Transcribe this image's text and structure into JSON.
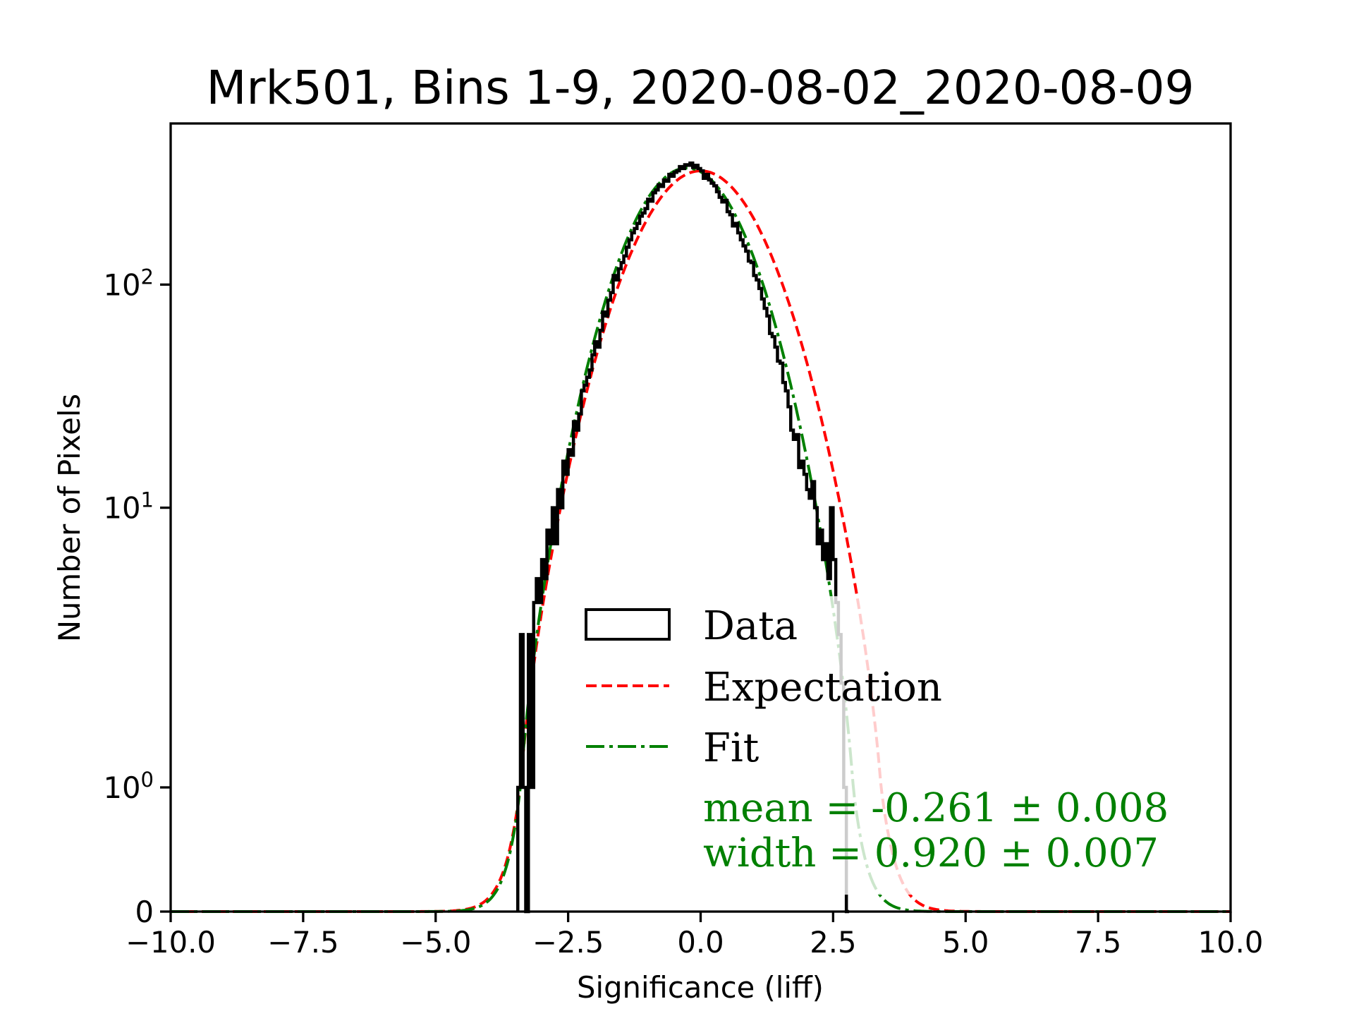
{
  "chart_data": {
    "type": "bar",
    "histtype": "step",
    "title": "Mrk501, Bins 1-9, 2020-08-02_2020-08-09",
    "xlabel": "Significance (liff)",
    "ylabel": "Number of Pixels",
    "xlim": [
      -10,
      10
    ],
    "ylim": [
      0,
      540
    ],
    "yscale": "symlog-like",
    "grid": false,
    "legend_placement": "lower-center-right",
    "x_ticks": [
      {
        "value": -10,
        "label": "−10.0"
      },
      {
        "value": -7.5,
        "label": "−7.5"
      },
      {
        "value": -5,
        "label": "−5.0"
      },
      {
        "value": -2.5,
        "label": "−2.5"
      },
      {
        "value": 0,
        "label": "0.0"
      },
      {
        "value": 2.5,
        "label": "2.5"
      },
      {
        "value": 5,
        "label": "5.0"
      },
      {
        "value": 7.5,
        "label": "7.5"
      },
      {
        "value": 10,
        "label": "10.0"
      }
    ],
    "y_ticks": [
      {
        "value": 0,
        "base": "0",
        "exp": ""
      },
      {
        "value": 1,
        "base": "10",
        "exp": "0"
      },
      {
        "value": 10,
        "base": "10",
        "exp": "1"
      },
      {
        "value": 100,
        "base": "10",
        "exp": "2"
      }
    ],
    "histogram": {
      "name": "Data",
      "color": "#000000",
      "bin_width": 0.05,
      "first_bin_left_edge": -3.45,
      "counts": [
        1,
        3,
        1,
        0,
        3,
        1,
        4,
        5,
        4,
        6,
        5,
        8,
        7,
        10,
        7,
        12,
        10,
        16,
        14,
        18,
        17,
        24,
        22,
        26,
        33,
        35,
        38,
        41,
        48,
        55,
        52,
        62,
        75,
        72,
        85,
        92,
        110,
        105,
        118,
        126,
        135,
        148,
        160,
        172,
        180,
        190,
        205,
        212,
        222,
        245,
        240,
        262,
        270,
        285,
        280,
        300,
        296,
        318,
        312,
        325,
        330,
        345,
        338,
        352,
        350,
        358,
        342,
        350,
        338,
        330,
        305,
        318,
        300,
        290,
        282,
        265,
        250,
        238,
        242,
        215,
        208,
        185,
        190,
        172,
        160,
        150,
        142,
        128,
        126,
        110,
        105,
        96,
        86,
        78,
        72,
        60,
        58,
        52,
        45,
        44,
        36,
        33,
        28,
        22,
        20,
        21,
        15,
        16,
        14,
        12,
        11,
        13,
        10,
        7,
        8,
        6,
        7,
        5,
        10,
        6,
        4,
        3,
        2,
        1,
        0
      ]
    },
    "series": [
      {
        "name": "Expectation",
        "type": "gaussian",
        "mean": 0.0,
        "width": 1.0,
        "amplitude": 330,
        "color": "#ff0000",
        "style": "dashed"
      },
      {
        "name": "Fit",
        "type": "gaussian",
        "mean": -0.261,
        "width": 0.92,
        "amplitude": 340,
        "color": "#008000",
        "style": "dashdot"
      }
    ],
    "legend": {
      "entries": [
        "Data",
        "Expectation",
        "Fit"
      ]
    },
    "annotations": {
      "mean_text": "mean = -0.261 ± 0.008",
      "width_text": "width = 0.920 ± 0.007",
      "color": "#008000"
    }
  }
}
